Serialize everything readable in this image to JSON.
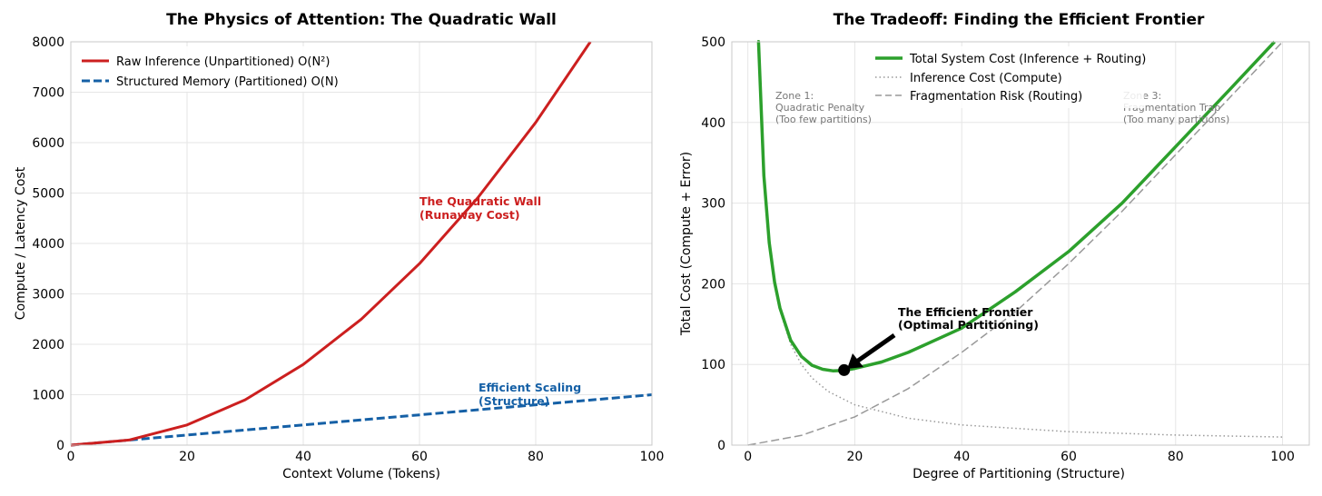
{
  "chart_data": [
    {
      "type": "line",
      "title": "The Physics of Attention: The Quadratic Wall",
      "xlabel": "Context Volume (Tokens)",
      "ylabel": "Compute / Latency Cost",
      "xlim": [
        0,
        100
      ],
      "ylim": [
        0,
        8000
      ],
      "xticks": [
        "0",
        "20",
        "40",
        "60",
        "80",
        "100"
      ],
      "yticks": [
        "0",
        "1000",
        "2000",
        "3000",
        "4000",
        "5000",
        "6000",
        "7000",
        "8000"
      ],
      "grid": true,
      "legend_position": "top-left",
      "series": [
        {
          "name": "Raw Inference (Unpartitioned) O(N²)",
          "color": "#cc1f1f",
          "style": "solid",
          "x": [
            0,
            10,
            20,
            30,
            40,
            50,
            60,
            70,
            80,
            89.4
          ],
          "y": [
            0,
            100,
            400,
            900,
            1600,
            2500,
            3600,
            4900,
            6400,
            8000
          ]
        },
        {
          "name": "Structured Memory (Partitioned) O(N)",
          "color": "#1560a6",
          "style": "dashed",
          "x": [
            0,
            20,
            40,
            60,
            80,
            100
          ],
          "y": [
            0,
            200,
            400,
            600,
            800,
            1000
          ]
        }
      ],
      "annotations": [
        {
          "line1": "The Quadratic Wall",
          "line2": "(Runaway Cost)",
          "x": 60,
          "y": 4700,
          "color": "#cc1f1f"
        },
        {
          "line1": "Efficient Scaling",
          "line2": "(Structure)",
          "x": 70,
          "y": 980,
          "color": "#1560a6"
        }
      ]
    },
    {
      "type": "line",
      "title": "The Tradeoff: Finding the Efficient Frontier",
      "xlabel": "Degree of Partitioning (Structure)",
      "ylabel": "Total Cost (Compute + Error)",
      "xlim": [
        -3,
        105
      ],
      "ylim": [
        0,
        500
      ],
      "xticks": [
        "0",
        "20",
        "40",
        "60",
        "80",
        "100"
      ],
      "yticks": [
        "0",
        "100",
        "200",
        "300",
        "400",
        "500"
      ],
      "grid": true,
      "legend_position": "top-center",
      "series": [
        {
          "name": "Total System Cost (Inference + Routing)",
          "color": "#2ca02c",
          "style": "solid",
          "x": [
            1.8,
            2,
            3,
            4,
            5,
            6,
            8,
            10,
            12,
            14,
            16,
            18,
            20,
            25,
            30,
            40,
            50,
            60,
            70,
            80,
            90,
            98.5
          ],
          "y": [
            500,
            500.2,
            334,
            251,
            202,
            170,
            130,
            110,
            99,
            94,
            92,
            92.6,
            95,
            103,
            115,
            145,
            190,
            240,
            300,
            370,
            440,
            500
          ]
        },
        {
          "name": "Inference Cost (Compute)",
          "color": "#999999",
          "style": "dotted",
          "x": [
            1.8,
            2,
            3,
            4,
            5,
            6,
            8,
            10,
            12,
            15,
            20,
            30,
            40,
            60,
            80,
            100
          ],
          "y": [
            500,
            500,
            333.3,
            250,
            200,
            166.7,
            125,
            100,
            83.3,
            66.7,
            50,
            33.3,
            25,
            16.7,
            12.5,
            10
          ]
        },
        {
          "name": "Fragmentation Risk (Routing)",
          "color": "#999999",
          "style": "dashed",
          "x": [
            0,
            10,
            20,
            30,
            40,
            50,
            60,
            70,
            80,
            90,
            100
          ],
          "y": [
            0,
            12,
            35,
            70,
            115,
            165,
            225,
            290,
            360,
            430,
            500
          ]
        }
      ],
      "optimum": {
        "x": 18,
        "y": 93
      },
      "annotations": [
        {
          "line1": "The Efficient Frontier",
          "line2": "(Optimal Partitioning)",
          "x": 28,
          "y": 150,
          "color": "#000000"
        },
        {
          "line1": "Zone 1:",
          "line2": "Quadratic Penalty",
          "line3": "(Too few partitions)",
          "x": 5,
          "y": 430
        },
        {
          "line1": "Zone 3:",
          "line2": "Fragmentation Trap",
          "line3": "(Too many partitions)",
          "x": 70,
          "y": 430
        }
      ]
    }
  ]
}
